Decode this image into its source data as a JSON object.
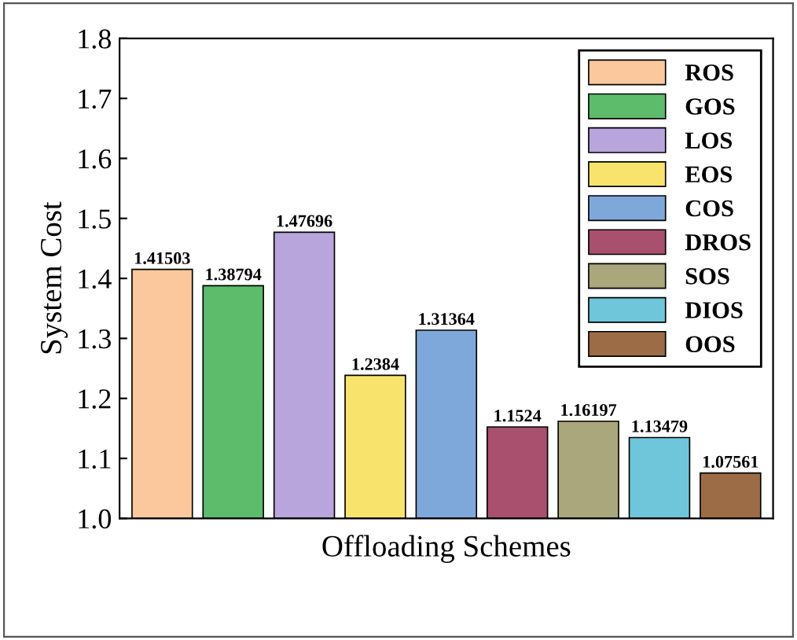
{
  "chart_data": {
    "type": "bar",
    "xlabel": "Offloading Schemes",
    "ylabel": "System Cost",
    "categories": [
      null,
      null,
      null,
      null,
      null,
      null,
      null,
      null,
      null
    ],
    "series": [
      {
        "name": "ROS",
        "color": "#fac89c",
        "values": [
          1.41503,
          null,
          null,
          null,
          null,
          null,
          null,
          null,
          null
        ]
      },
      {
        "name": "GOS",
        "color": "#5dbb6c",
        "values": [
          null,
          1.38794,
          null,
          null,
          null,
          null,
          null,
          null,
          null
        ]
      },
      {
        "name": "LOS",
        "color": "#b7a5dc",
        "values": [
          null,
          null,
          1.47696,
          null,
          null,
          null,
          null,
          null,
          null
        ]
      },
      {
        "name": "EOS",
        "color": "#f8e46c",
        "values": [
          null,
          null,
          null,
          1.2384,
          null,
          null,
          null,
          null,
          null
        ]
      },
      {
        "name": "COS",
        "color": "#7fa8da",
        "values": [
          null,
          null,
          null,
          null,
          1.31364,
          null,
          null,
          null,
          null
        ]
      },
      {
        "name": "DROS",
        "color": "#a8506e",
        "values": [
          null,
          null,
          null,
          null,
          null,
          1.1524,
          null,
          null,
          null
        ]
      },
      {
        "name": "SOS",
        "color": "#a9a77b",
        "values": [
          null,
          null,
          null,
          null,
          null,
          null,
          1.16197,
          null,
          null
        ]
      },
      {
        "name": "DIOS",
        "color": "#6fc6da",
        "values": [
          null,
          null,
          null,
          null,
          null,
          null,
          null,
          1.13479,
          null
        ]
      },
      {
        "name": "OOS",
        "color": "#9c6c46",
        "values": [
          null,
          null,
          null,
          null,
          null,
          null,
          null,
          null,
          1.07561
        ]
      }
    ],
    "ylim": [
      1.0,
      1.8
    ],
    "yticks": [
      {
        "value": 1.0,
        "label": "1.0"
      },
      1.1,
      1.2,
      1.3,
      1.4,
      1.5,
      1.6,
      1.7,
      1.8
    ],
    "tick_labels": "y",
    "data_labels": true,
    "legend": "top right",
    "grid": false
  }
}
